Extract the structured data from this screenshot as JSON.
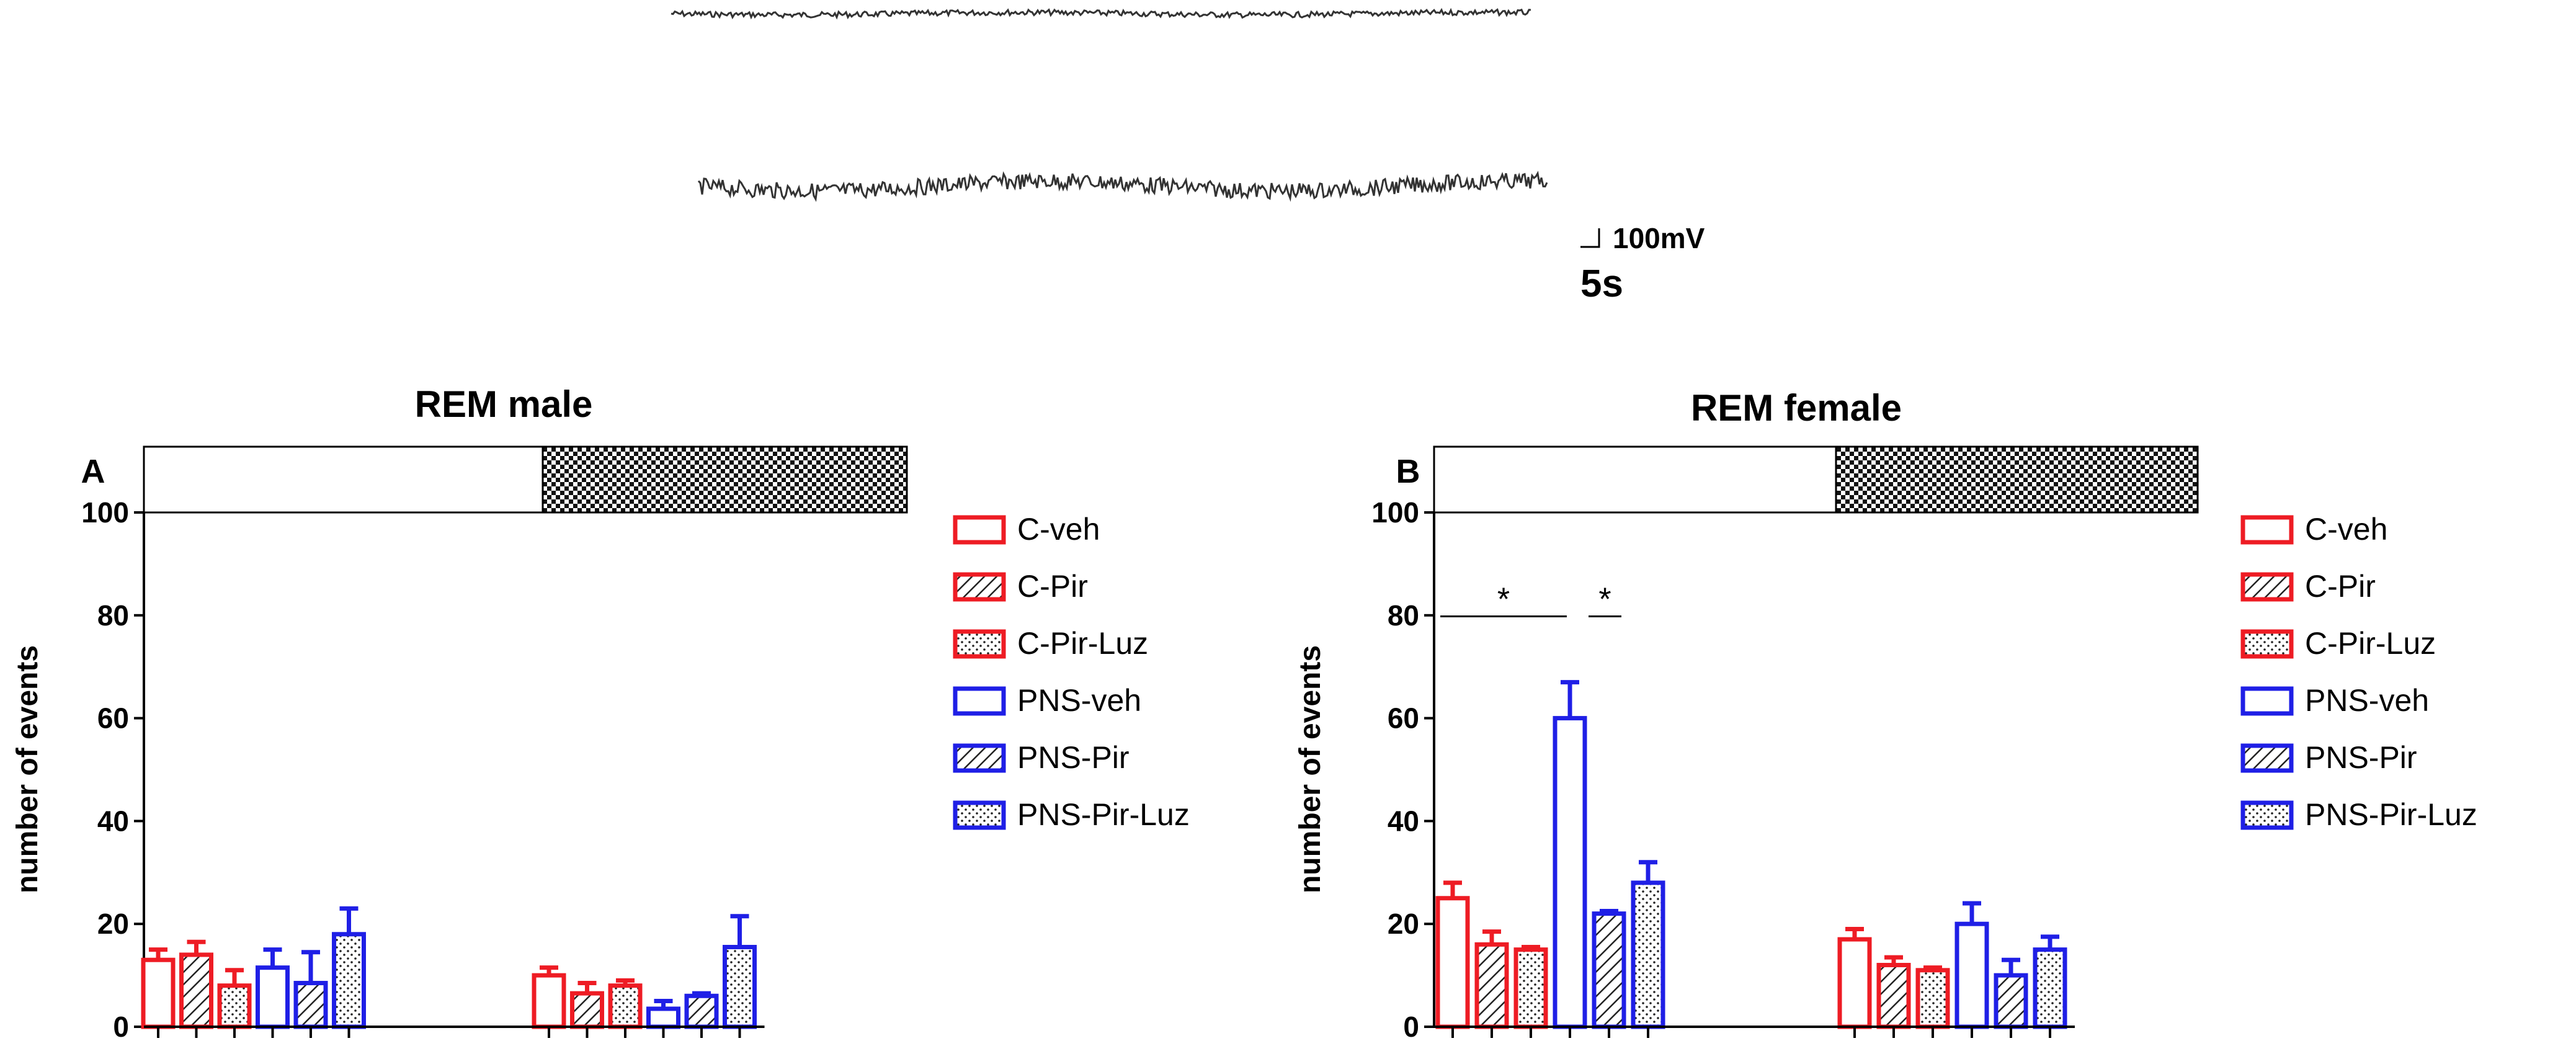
{
  "figure": {
    "scale_bar": {
      "voltage_label": "100mV",
      "time_label": "5s"
    }
  },
  "colors": {
    "red": "#ee1c24",
    "blue": "#1f1fe6",
    "black": "#000000",
    "trace": "#333333"
  },
  "legend": [
    {
      "label": "C-veh",
      "color": "red",
      "pattern": "open"
    },
    {
      "label": "C-Pir",
      "color": "red",
      "pattern": "hatch"
    },
    {
      "label": "C-Pir-Luz",
      "color": "red",
      "pattern": "dots"
    },
    {
      "label": "PNS-veh",
      "color": "blue",
      "pattern": "open"
    },
    {
      "label": "PNS-Pir",
      "color": "blue",
      "pattern": "hatch"
    },
    {
      "label": "PNS-Pir-Luz",
      "color": "blue",
      "pattern": "dots"
    }
  ],
  "chart_data": [
    {
      "type": "bar",
      "panel_label": "A",
      "title": "REM male",
      "ylabel": "number of events",
      "ylim": [
        0,
        100
      ],
      "yticks": [
        0,
        20,
        40,
        60,
        80,
        100
      ],
      "phases": [
        {
          "name": "light",
          "pattern": "white"
        },
        {
          "name": "dark",
          "pattern": "checker"
        }
      ],
      "series": [
        {
          "name": "C-veh",
          "light": 13,
          "dark": 10,
          "light_err": 2,
          "dark_err": 1.5
        },
        {
          "name": "C-Pir",
          "light": 14,
          "dark": 6.5,
          "light_err": 2.5,
          "dark_err": 2
        },
        {
          "name": "C-Pir-Luz",
          "light": 8,
          "dark": 8,
          "light_err": 3,
          "dark_err": 1
        },
        {
          "name": "PNS-veh",
          "light": 11.5,
          "dark": 3.5,
          "light_err": 3.5,
          "dark_err": 1.5
        },
        {
          "name": "PNS-Pir",
          "light": 8.5,
          "dark": 6,
          "light_err": 6,
          "dark_err": 0.5
        },
        {
          "name": "PNS-Pir-Luz",
          "light": 18,
          "dark": 15.5,
          "light_err": 5,
          "dark_err": 6
        }
      ],
      "annotations": []
    },
    {
      "type": "bar",
      "panel_label": "B",
      "title": "REM female",
      "ylabel": "number of events",
      "ylim": [
        0,
        100
      ],
      "yticks": [
        0,
        20,
        40,
        60,
        80,
        100
      ],
      "phases": [
        {
          "name": "light",
          "pattern": "white"
        },
        {
          "name": "dark",
          "pattern": "checker"
        }
      ],
      "series": [
        {
          "name": "C-veh",
          "light": 25,
          "dark": 17,
          "light_err": 3,
          "dark_err": 2
        },
        {
          "name": "C-Pir",
          "light": 16,
          "dark": 12,
          "light_err": 2.5,
          "dark_err": 1.5
        },
        {
          "name": "C-Pir-Luz",
          "light": 15,
          "dark": 11,
          "light_err": 0.5,
          "dark_err": 0.5
        },
        {
          "name": "PNS-veh",
          "light": 60,
          "dark": 20,
          "light_err": 7,
          "dark_err": 4
        },
        {
          "name": "PNS-Pir",
          "light": 22,
          "dark": 10,
          "light_err": 0.5,
          "dark_err": 3
        },
        {
          "name": "PNS-Pir-Luz",
          "light": 28,
          "dark": 15,
          "light_err": 4,
          "dark_err": 2.5
        }
      ],
      "annotations": [
        {
          "text": "*",
          "from": "C-veh",
          "to": "PNS-veh",
          "y": 81
        },
        {
          "text": "*",
          "from": "PNS-veh",
          "to": "PNS-Pir",
          "y": 81
        }
      ]
    }
  ]
}
